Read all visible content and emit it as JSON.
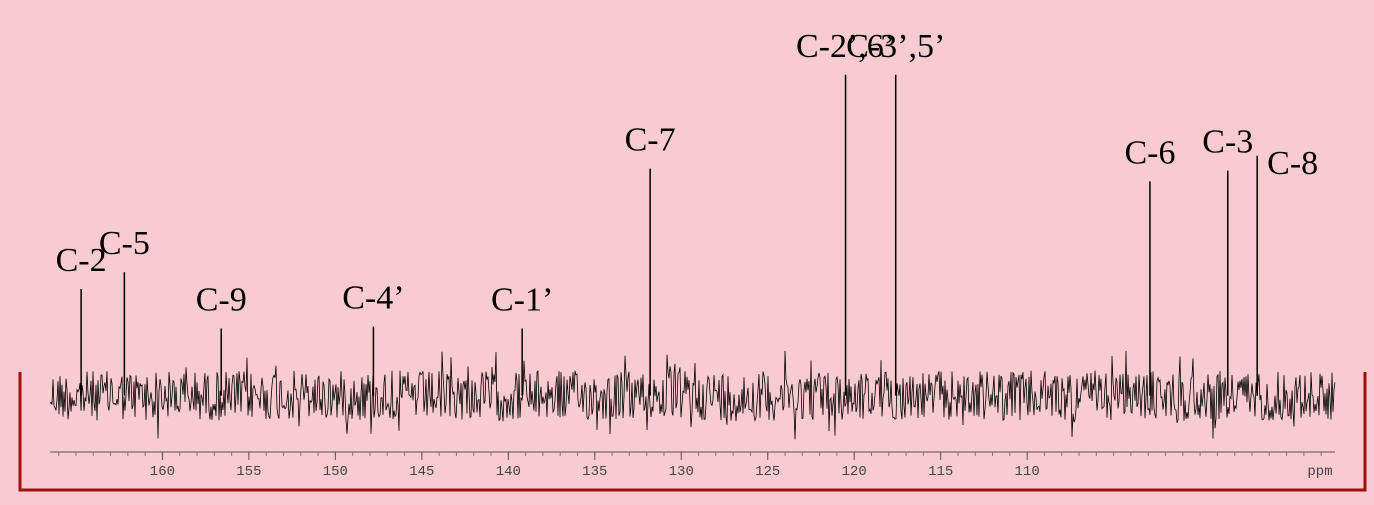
{
  "chart_data": {
    "type": "spectrum",
    "x_label": "ppm",
    "peak_labels": [
      "C-2",
      "C-5",
      "C-9",
      "C-4’",
      "C-1’",
      "C-7",
      "C-2’,6’",
      "C-3’,5’",
      "C-6",
      "C-3",
      "C-8"
    ],
    "x": [
      164.7,
      162.2,
      156.6,
      147.8,
      139.2,
      131.8,
      120.5,
      117.6,
      102.9,
      98.4,
      96.7
    ],
    "values": [
      108,
      125,
      68,
      70,
      68,
      230,
      325,
      325,
      217,
      228,
      243
    ],
    "color": "#000000",
    "xlim": [
      166.5,
      92.2
    ],
    "xticks": [
      160,
      155,
      150,
      145,
      140,
      135,
      130,
      125,
      120,
      115,
      110
    ],
    "ylim": [
      -50,
      340
    ]
  }
}
